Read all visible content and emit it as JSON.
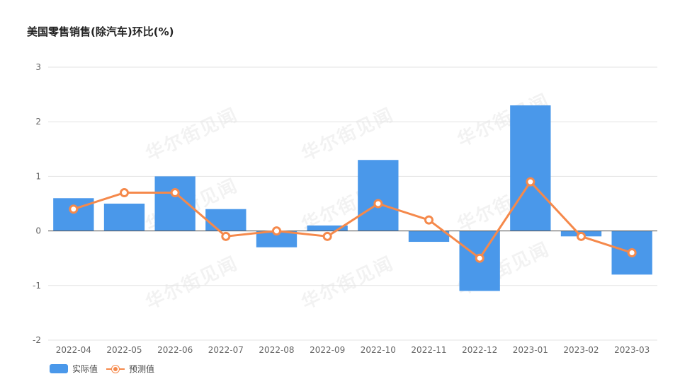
{
  "chart_data": {
    "type": "bar+line",
    "title": "美国零售销售(除汽车)环比(%)",
    "categories": [
      "2022-04",
      "2022-05",
      "2022-06",
      "2022-07",
      "2022-08",
      "2022-09",
      "2022-10",
      "2022-11",
      "2022-12",
      "2023-01",
      "2023-02",
      "2023-03"
    ],
    "series": [
      {
        "name": "实际值",
        "type": "bar",
        "color": "#4a98ea",
        "values": [
          0.6,
          0.5,
          1.0,
          0.4,
          -0.3,
          0.1,
          1.3,
          -0.2,
          -1.1,
          2.3,
          -0.1,
          -0.8
        ]
      },
      {
        "name": "预测值",
        "type": "line",
        "color": "#f5894b",
        "values": [
          0.4,
          0.7,
          0.7,
          -0.1,
          0.0,
          -0.1,
          0.5,
          0.2,
          -0.5,
          0.9,
          -0.1,
          -0.4
        ]
      }
    ],
    "ylim": [
      -2,
      3
    ],
    "yticks": [
      3,
      2,
      1,
      0,
      -1,
      -2
    ],
    "grid": true,
    "legend": "bottom-left",
    "watermark": "华尔街见闻"
  }
}
